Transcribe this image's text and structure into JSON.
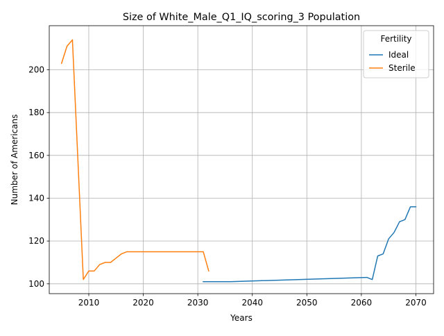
{
  "chart_data": {
    "type": "line",
    "title": "Size of White_Male_Q1_IQ_scoring_3 Population",
    "xlabel": "Years",
    "ylabel": "Number of Americans",
    "xlim": [
      2002.75,
      2073.25
    ],
    "ylim": [
      95.4,
      220.6
    ],
    "xticks": [
      2010,
      2020,
      2030,
      2040,
      2050,
      2060,
      2070
    ],
    "yticks": [
      100,
      120,
      140,
      160,
      180,
      200
    ],
    "grid": true,
    "legend": {
      "title": "Fertility",
      "placement": "top-right"
    },
    "series": [
      {
        "name": "Ideal",
        "color": "#1f77b4",
        "x": [
          2031,
          2036,
          2061,
          2062,
          2063,
          2064,
          2065,
          2066,
          2067,
          2068,
          2069,
          2070
        ],
        "y": [
          101,
          101,
          103,
          102,
          113,
          114,
          121,
          124,
          129,
          130,
          136,
          136
        ]
      },
      {
        "name": "Sterile",
        "color": "#ff7f0e",
        "x": [
          2005,
          2006,
          2007,
          2008,
          2009,
          2010,
          2011,
          2012,
          2013,
          2014,
          2015,
          2016,
          2017,
          2018,
          2031,
          2032
        ],
        "y": [
          203,
          211,
          214,
          158,
          102,
          106,
          106,
          109,
          110,
          110,
          112,
          114,
          115,
          115,
          115,
          106
        ]
      }
    ]
  }
}
